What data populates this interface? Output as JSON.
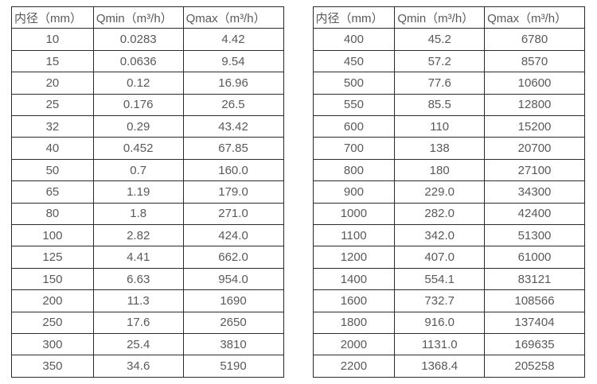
{
  "page": {
    "background": "#ffffff",
    "text_color": "#595959",
    "border_color": "#2b2b2b"
  },
  "tables": [
    {
      "name": "flow-spec-table-small-diameters",
      "headers": [
        "内径（mm）",
        "Qmin（m³/h）",
        "Qmax（m³/h）"
      ],
      "rows": [
        [
          "10",
          "0.0283",
          "4.42"
        ],
        [
          "15",
          "0.0636",
          "9.54"
        ],
        [
          "20",
          "0.12",
          "16.96"
        ],
        [
          "25",
          "0.176",
          "26.5"
        ],
        [
          "32",
          "0.29",
          "43.42"
        ],
        [
          "40",
          "0.452",
          "67.85"
        ],
        [
          "50",
          "0.7",
          "160.0"
        ],
        [
          "65",
          "1.19",
          "179.0"
        ],
        [
          "80",
          "1.8",
          "271.0"
        ],
        [
          "100",
          "2.82",
          "424.0"
        ],
        [
          "125",
          "4.41",
          "662.0"
        ],
        [
          "150",
          "6.63",
          "954.0"
        ],
        [
          "200",
          "11.3",
          "1690"
        ],
        [
          "250",
          "17.6",
          "2650"
        ],
        [
          "300",
          "25.4",
          "3810"
        ],
        [
          "350",
          "34.6",
          "5190"
        ]
      ]
    },
    {
      "name": "flow-spec-table-large-diameters",
      "headers": [
        "内径（mm）",
        "Qmin（m³/h）",
        "Qmax（m³/h）"
      ],
      "rows": [
        [
          "400",
          "45.2",
          "6780"
        ],
        [
          "450",
          "57.2",
          "8570"
        ],
        [
          "500",
          "77.6",
          "10600"
        ],
        [
          "550",
          "85.5",
          "12800"
        ],
        [
          "600",
          "110",
          "15200"
        ],
        [
          "700",
          "138",
          "20700"
        ],
        [
          "800",
          "180",
          "27100"
        ],
        [
          "900",
          "229.0",
          "34300"
        ],
        [
          "1000",
          "282.0",
          "42400"
        ],
        [
          "1100",
          "342.0",
          "51300"
        ],
        [
          "1200",
          "407.0",
          "61000"
        ],
        [
          "1400",
          "554.1",
          "83121"
        ],
        [
          "1600",
          "732.7",
          "108566"
        ],
        [
          "1800",
          "916.0",
          "137404"
        ],
        [
          "2000",
          "1131.0",
          "169635"
        ],
        [
          "2200",
          "1368.4",
          "205258"
        ]
      ]
    }
  ]
}
